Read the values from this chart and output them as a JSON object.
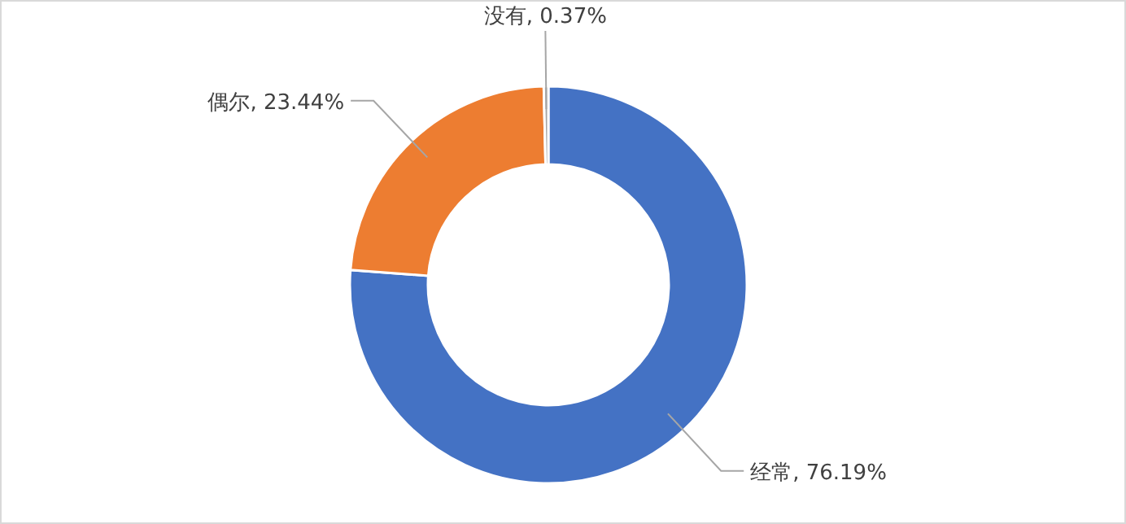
{
  "chart_data": {
    "type": "donut",
    "categories": [
      "经常",
      "偶尔",
      "没有"
    ],
    "values": [
      76.19,
      23.44,
      0.37
    ],
    "colors": [
      "#4472c4",
      "#ed7d31",
      "#a5a5a5"
    ],
    "value_labels": [
      "76.19%",
      "23.44%",
      "0.37%"
    ],
    "legend": false
  }
}
